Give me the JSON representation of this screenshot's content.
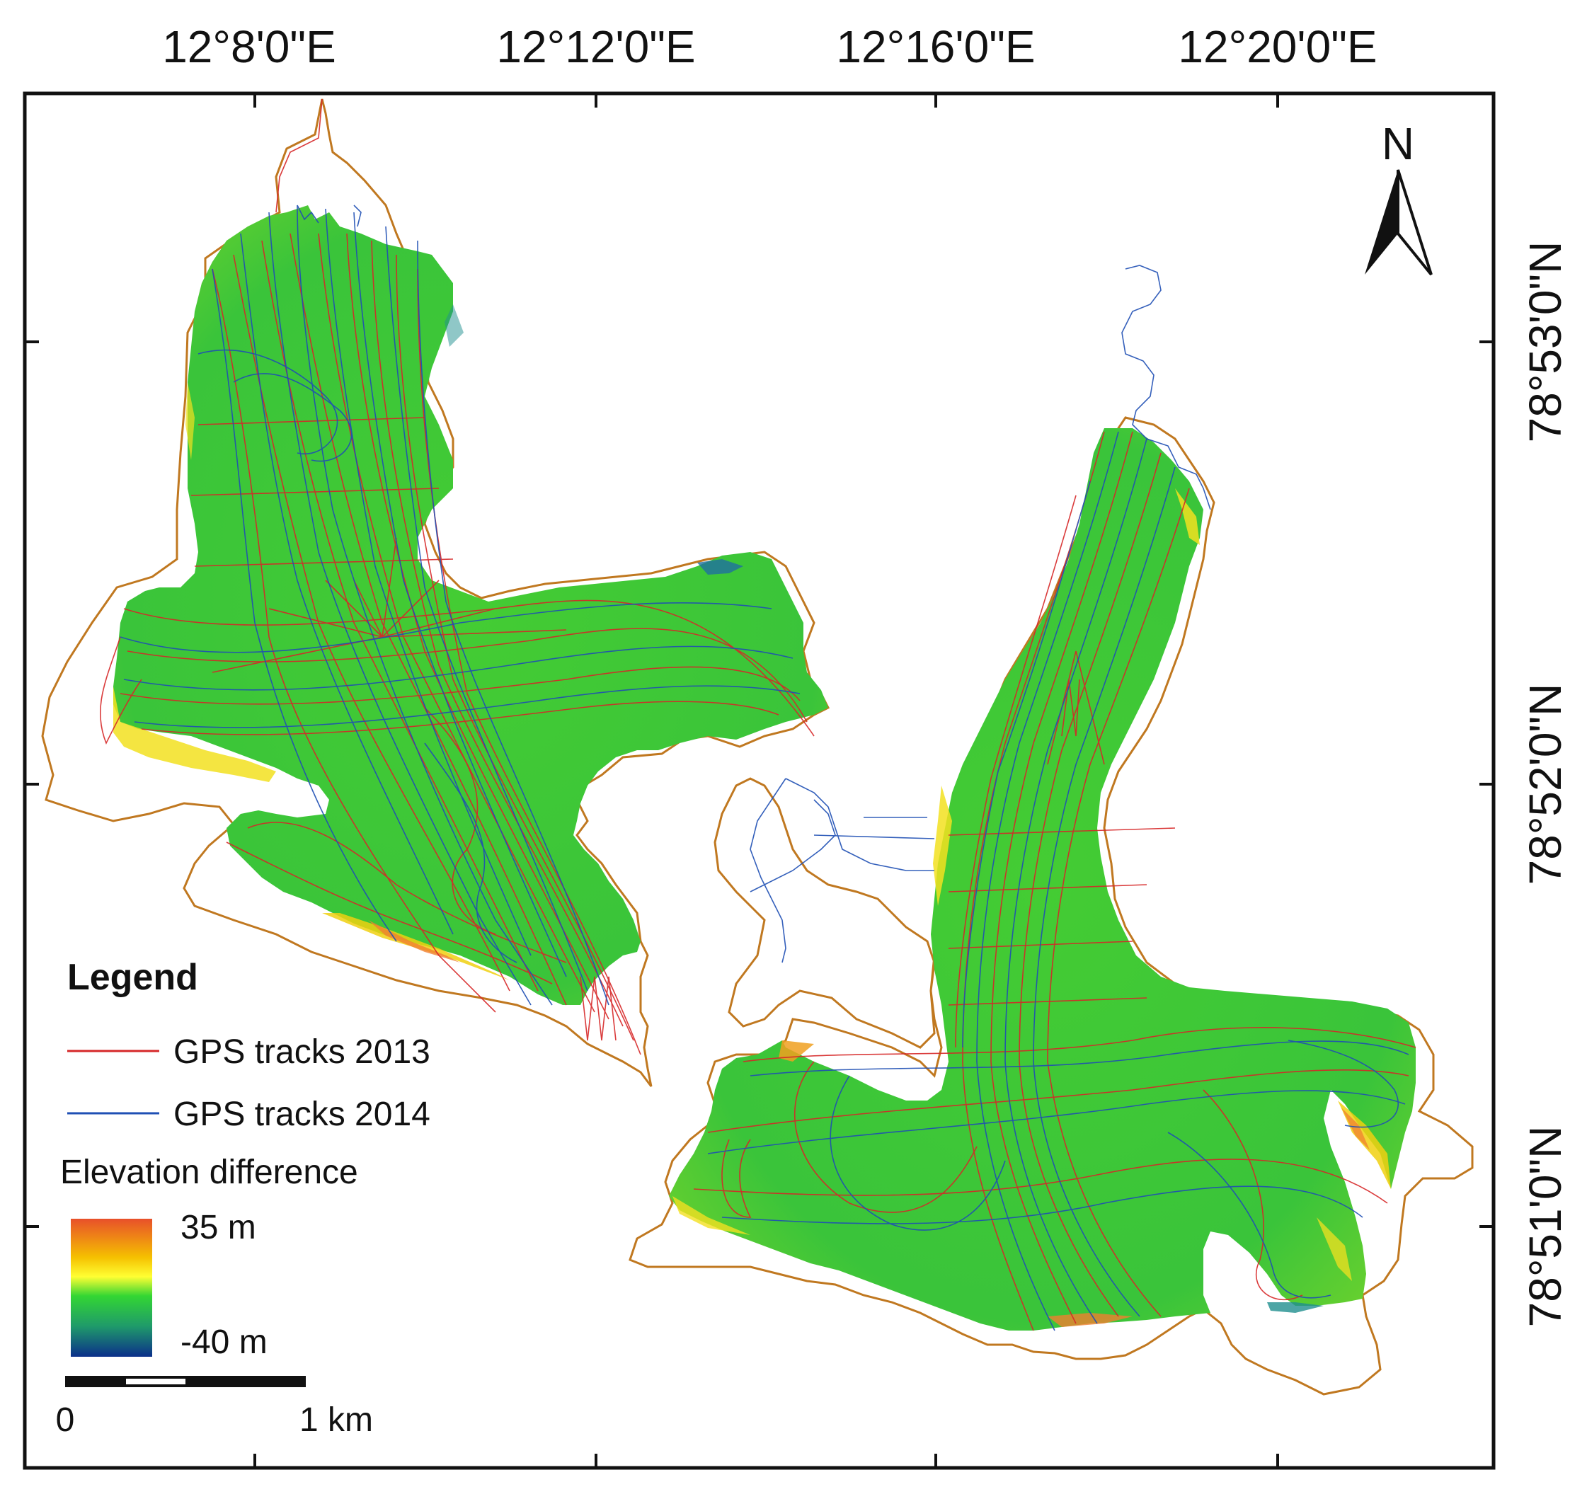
{
  "map": {
    "lon_ticks": [
      "12°8'0\"E",
      "12°12'0\"E",
      "12°16'0\"E",
      "12°20'0\"E"
    ],
    "lat_ticks": [
      "78°53'0\"N",
      "78°52'0\"N",
      "78°51'0\"N"
    ],
    "north_arrow_label": "N"
  },
  "legend": {
    "title": "Legend",
    "items": [
      {
        "label": "GPS tracks 2013",
        "color": "#d62728"
      },
      {
        "label": "GPS tracks 2014",
        "color": "#1f4fb4"
      }
    ],
    "ramp_title": "Elevation difference",
    "ramp_max": "35 m",
    "ramp_min": "-40 m",
    "ramp_colors": [
      "#e8502a",
      "#f0c000",
      "#ffff33",
      "#33cc33",
      "#1f8f6f",
      "#0b2f8a"
    ],
    "scale_start": "0",
    "scale_end": "1 km"
  },
  "colors": {
    "glacier_fill": "#3cc83c",
    "outline": "#c07820",
    "track_2013": "#d62728",
    "track_2014": "#1f4fb4"
  }
}
